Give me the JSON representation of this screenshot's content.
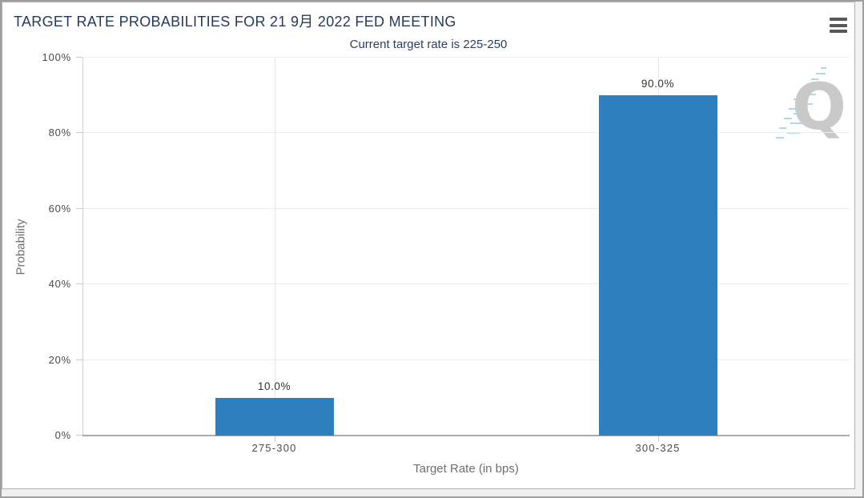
{
  "page": {
    "background": "#f1f1f1",
    "outer_border_color": "#9f9f9f",
    "panel_border_color": "#b4b4b4"
  },
  "header": {
    "title": "TARGET RATE PROBABILITIES FOR 21 9月 2022 FED MEETING",
    "subtitle": "Current target rate is 225-250",
    "title_color": "#263a5e",
    "menu_icon": "hamburger-menu-icon"
  },
  "watermark": {
    "letter": "Q",
    "letter_color": "#c9c9c9",
    "dash_color": "#aed9ec"
  },
  "chart_data": {
    "type": "bar",
    "title": "TARGET RATE PROBABILITIES FOR 21 9月 2022 FED MEETING",
    "subtitle": "Current target rate is 225-250",
    "categories": [
      "275-300",
      "300-325"
    ],
    "values": [
      10.0,
      90.0
    ],
    "value_labels": [
      "10.0%",
      "90.0%"
    ],
    "xlabel": "Target Rate (in bps)",
    "ylabel": "Probability",
    "ylim": [
      0,
      100
    ],
    "yticks": [
      "0%",
      "20%",
      "40%",
      "60%",
      "80%",
      "100%"
    ],
    "ytick_values": [
      0,
      20,
      40,
      60,
      80,
      100
    ],
    "bar_color": "#2d80bd",
    "grid": true,
    "legend": false
  }
}
